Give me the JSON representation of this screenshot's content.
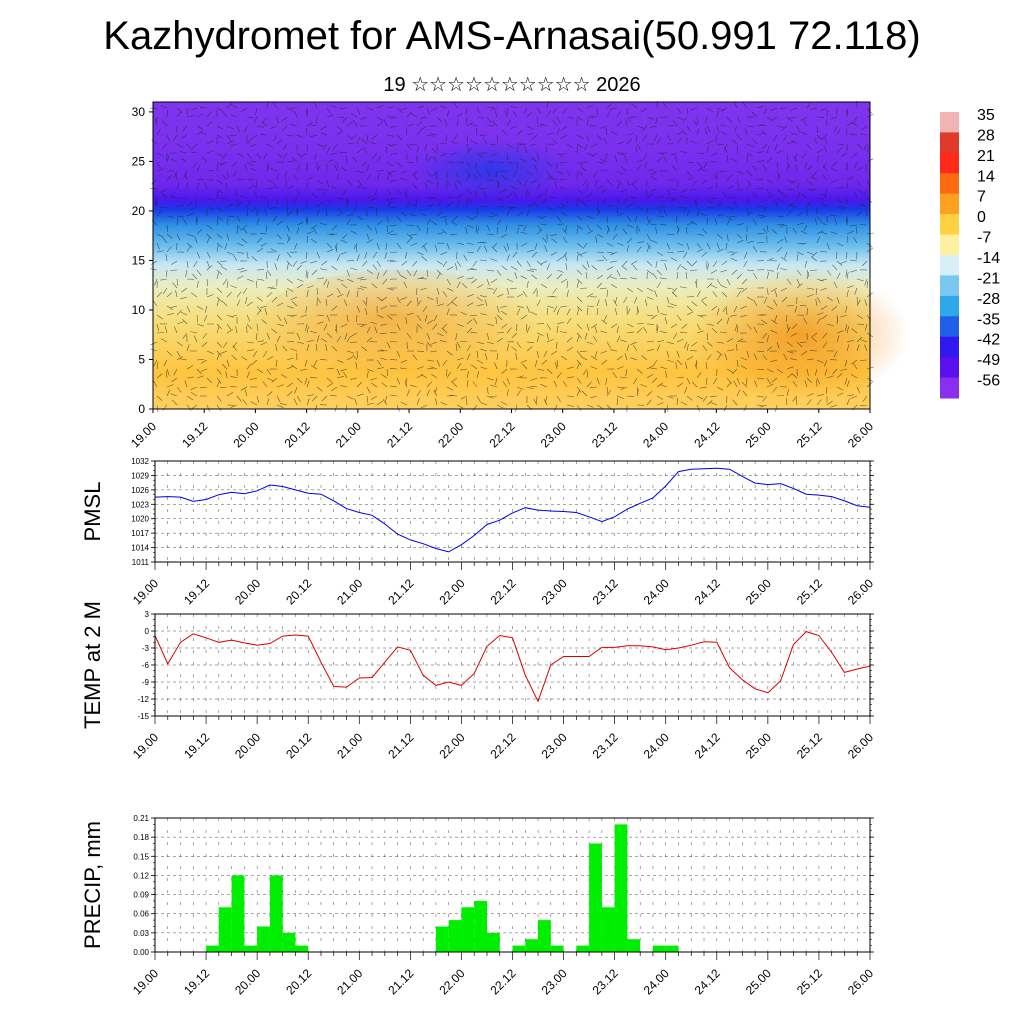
{
  "header": {
    "title": "Kazhydromet for AMS-Arnasai(50.991 72.118)",
    "subtitle": "19 ☆☆☆☆☆☆☆☆☆☆ 2026"
  },
  "chart_data": [
    {
      "type": "heatmap",
      "title": "",
      "x_ticks": [
        "19.00",
        "19.12",
        "20.00",
        "20.12",
        "21.00",
        "21.12",
        "22.00",
        "22.12",
        "23.00",
        "23.12",
        "24.00",
        "24.12",
        "25.00",
        "25.12",
        "26.00"
      ],
      "y_ticks": [
        0,
        5,
        10,
        15,
        20,
        25,
        30
      ],
      "ylim": [
        0,
        31
      ],
      "colorbar_labels": [
        "35",
        "28",
        "21",
        "14",
        "7",
        "0",
        "-7",
        "-14",
        "-21",
        "-28",
        "-35",
        "-42",
        "-49",
        "-56"
      ],
      "colorbar_colors": [
        "#f2b3b3",
        "#e03a2a",
        "#ff2a1a",
        "#ff6a10",
        "#ffa020",
        "#ffd040",
        "#fff0a0",
        "#d8eef8",
        "#7ac8ef",
        "#30a8e8",
        "#2060e8",
        "#3018ef",
        "#5a10ef",
        "#8a2ef0"
      ],
      "note_overlay": "wind barbs"
    },
    {
      "type": "line",
      "ylabel": "PMSL",
      "y_ticks": [
        1011,
        1014,
        1017,
        1020,
        1023,
        1026,
        1029,
        1032
      ],
      "ylim": [
        1011,
        1032
      ],
      "x_ticks": [
        "19.00",
        "19.12",
        "20.00",
        "20.12",
        "21.00",
        "21.12",
        "22.00",
        "22.12",
        "23.00",
        "23.12",
        "24.00",
        "24.12",
        "25.00",
        "25.12",
        "26.00"
      ],
      "color": "#0000dd",
      "x": [
        0,
        3,
        6,
        9,
        12,
        15,
        18,
        21,
        24,
        27,
        30,
        33,
        36,
        39,
        42,
        45,
        48,
        51,
        54,
        57,
        60,
        63,
        66,
        69,
        72,
        75,
        78,
        81,
        84,
        87,
        90,
        93,
        96,
        99,
        102,
        105,
        108,
        111,
        114,
        117,
        120,
        123,
        126,
        129,
        132,
        135,
        138,
        141,
        144,
        147,
        150,
        153,
        156,
        159,
        162,
        165,
        168
      ],
      "values": [
        1024.5,
        1024.6,
        1024.5,
        1023.6,
        1024.0,
        1025.0,
        1025.5,
        1025.2,
        1025.8,
        1027.0,
        1026.7,
        1026.0,
        1025.3,
        1025.1,
        1023.7,
        1022.1,
        1021.3,
        1020.7,
        1018.9,
        1016.8,
        1015.6,
        1014.8,
        1013.8,
        1013.1,
        1014.6,
        1016.5,
        1018.8,
        1019.7,
        1021.2,
        1022.3,
        1021.8,
        1021.6,
        1021.5,
        1021.3,
        1020.4,
        1019.4,
        1020.4,
        1022.0,
        1023.2,
        1024.3,
        1026.8,
        1029.8,
        1030.3,
        1030.4,
        1030.5,
        1030.3,
        1028.8,
        1027.4,
        1027.1,
        1027.3,
        1026.3,
        1025.1,
        1024.9,
        1024.6,
        1023.7,
        1022.7,
        1022.4
      ]
    },
    {
      "type": "line",
      "ylabel": "TEMP at 2 M",
      "y_ticks": [
        3,
        0,
        -3,
        -6,
        -9,
        -12,
        -15
      ],
      "ylim": [
        -15,
        3
      ],
      "x_ticks": [
        "19.00",
        "19.12",
        "20.00",
        "20.12",
        "21.00",
        "21.12",
        "22.00",
        "22.12",
        "23.00",
        "23.12",
        "24.00",
        "24.12",
        "25.00",
        "25.12",
        "26.00"
      ],
      "color": "#dd0000",
      "x": [
        0,
        3,
        6,
        9,
        12,
        15,
        18,
        21,
        24,
        27,
        30,
        33,
        36,
        39,
        42,
        45,
        48,
        51,
        54,
        57,
        60,
        63,
        66,
        69,
        72,
        75,
        78,
        81,
        84,
        87,
        90,
        93,
        96,
        99,
        102,
        105,
        108,
        111,
        114,
        117,
        120,
        123,
        126,
        129,
        132,
        135,
        138,
        141,
        144,
        147,
        150,
        153,
        156,
        159,
        162,
        165,
        168
      ],
      "values": [
        -0.8,
        -5.8,
        -2.0,
        -0.5,
        -1.2,
        -2.0,
        -1.6,
        -2.1,
        -2.5,
        -2.2,
        -0.9,
        -0.7,
        -0.9,
        -5.5,
        -9.8,
        -9.9,
        -8.3,
        -8.2,
        -5.5,
        -2.8,
        -3.4,
        -7.8,
        -9.6,
        -9.0,
        -9.6,
        -7.5,
        -2.7,
        -0.8,
        -1.2,
        -7.8,
        -12.4,
        -6.0,
        -4.5,
        -4.5,
        -4.5,
        -2.9,
        -2.9,
        -2.6,
        -2.6,
        -2.8,
        -3.3,
        -3.0,
        -2.5,
        -1.9,
        -2.0,
        -6.5,
        -8.6,
        -10.2,
        -10.9,
        -8.8,
        -2.4,
        -0.1,
        -0.8,
        -3.8,
        -7.3,
        -6.7,
        -6.2
      ]
    },
    {
      "type": "bar",
      "ylabel": "PRECIP, mm",
      "y_ticks": [
        "0.00",
        "0.03",
        "0.06",
        "0.09",
        "0.12",
        "0.15",
        "0.18",
        "0.21"
      ],
      "ylim": [
        0,
        0.21
      ],
      "x_ticks": [
        "19.00",
        "19.12",
        "20.00",
        "20.12",
        "21.00",
        "21.12",
        "22.00",
        "22.12",
        "23.00",
        "23.12",
        "24.00",
        "24.12",
        "25.00",
        "25.12",
        "26.00"
      ],
      "color": "#00ee00",
      "x": [
        12,
        15,
        18,
        21,
        24,
        27,
        30,
        33,
        36,
        66,
        69,
        72,
        75,
        78,
        81,
        84,
        87,
        90,
        93,
        96,
        99,
        102,
        105,
        108,
        111,
        114,
        117,
        120,
        123
      ],
      "values": [
        0.01,
        0.07,
        0.12,
        0.01,
        0.04,
        0.12,
        0.03,
        0.01,
        0.0,
        0.04,
        0.05,
        0.07,
        0.08,
        0.03,
        0.0,
        0.01,
        0.02,
        0.05,
        0.01,
        0.0,
        0.01,
        0.17,
        0.07,
        0.2,
        0.02,
        0.0,
        0.01,
        0.01,
        0.0
      ]
    }
  ]
}
